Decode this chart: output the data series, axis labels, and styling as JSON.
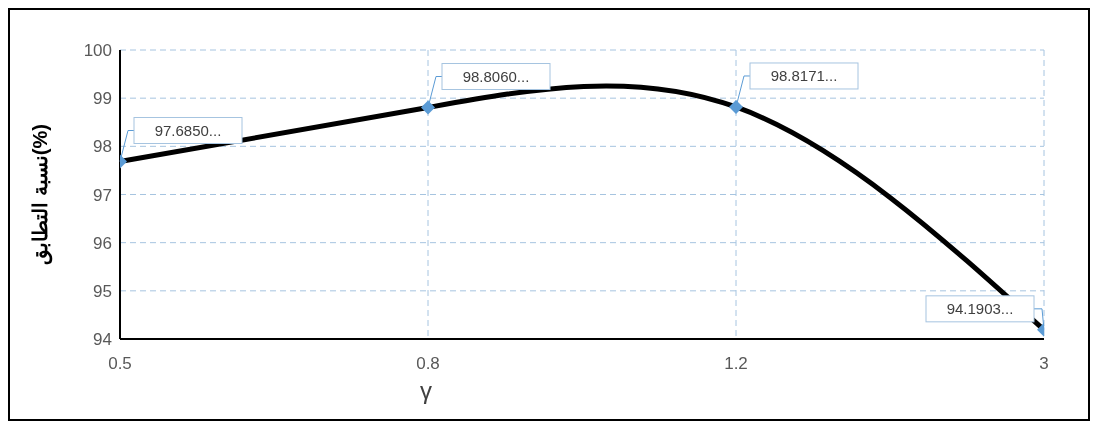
{
  "chart_data": {
    "type": "line",
    "xlabel": "γ",
    "ylabel": "نسبة التطابق(%)",
    "categories": [
      "0.5",
      "0.8",
      "1.2",
      "3"
    ],
    "series": [
      {
        "color": "#000000",
        "colors": [
          "#5b9bd5",
          "#5b9bd5",
          "#5b9bd5",
          "#5b9bd5"
        ],
        "values": [
          97.685,
          98.806,
          98.8171,
          94.1903
        ],
        "value_labels": [
          "97.6850...",
          "98.8060...",
          "98.8171...",
          "94.1903..."
        ]
      }
    ],
    "ylim": [
      94,
      100
    ],
    "yticks": [
      94,
      95,
      96,
      97,
      98,
      99,
      100
    ],
    "grid": true,
    "legend": false,
    "marker": "diamond",
    "line_style": "solid"
  }
}
